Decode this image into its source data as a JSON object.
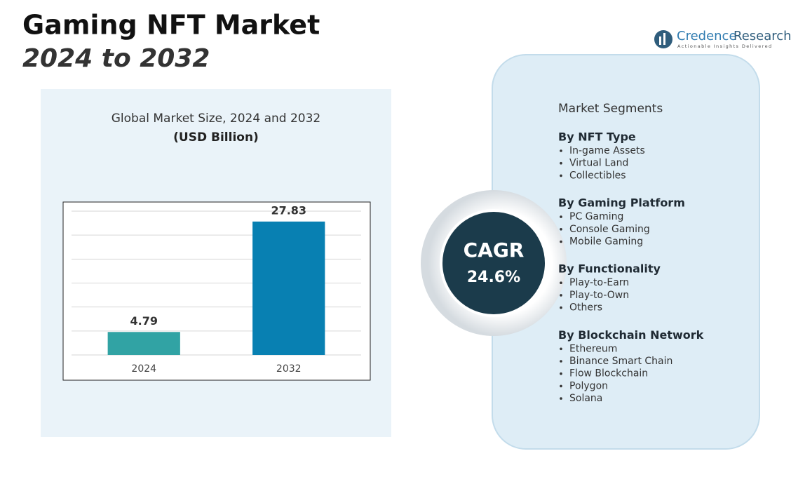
{
  "header": {
    "title": "Gaming NFT Market",
    "subtitle": "2024 to 2032"
  },
  "logo": {
    "name": "Credence",
    "name_2": "Research",
    "tagline": "Actionable Insights Delivered"
  },
  "chart_data": {
    "type": "bar",
    "title": "Global Market Size, 2024 and 2032",
    "subtitle": "(USD Billion)",
    "categories": [
      "2024",
      "2032"
    ],
    "values": [
      4.79,
      27.83
    ],
    "colors": [
      "#31a3a4",
      "#0880b2"
    ],
    "ylim": [
      0,
      30
    ],
    "yticks": [
      0,
      5,
      10,
      15,
      20,
      25,
      30
    ],
    "grid": true
  },
  "cagr": {
    "label": "CAGR",
    "value": "24.6%"
  },
  "segments": {
    "title": "Market Segments",
    "groups": [
      {
        "title": "By NFT Type",
        "items": [
          "In-game Assets",
          "Virtual Land",
          "Collectibles"
        ]
      },
      {
        "title": "By Gaming Platform",
        "items": [
          "PC Gaming",
          "Console Gaming",
          "Mobile Gaming"
        ]
      },
      {
        "title": "By Functionality",
        "items": [
          "Play-to-Earn",
          "Play-to-Own",
          "Others"
        ]
      },
      {
        "title": "By Blockchain Network",
        "items": [
          "Ethereum",
          "Binance Smart Chain",
          "Flow Blockchain",
          "Polygon",
          "Solana"
        ]
      }
    ]
  }
}
